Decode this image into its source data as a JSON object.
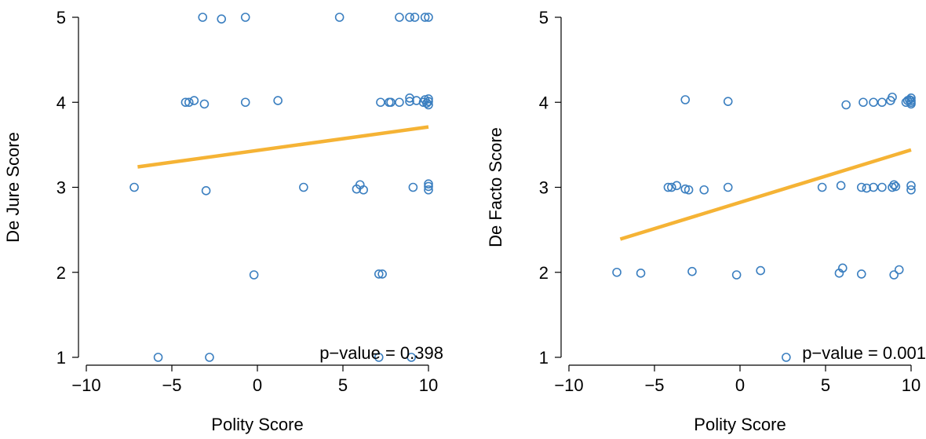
{
  "colors": {
    "point": "#3b7fc0",
    "fit_line": "#f5b335",
    "axis": "#000000"
  },
  "chart_data": [
    {
      "type": "scatter",
      "title": "",
      "xlabel": "Polity Score",
      "ylabel": "De Jure Score",
      "xlim": [
        -10,
        10
      ],
      "ylim": [
        1,
        5
      ],
      "xticks": [
        "−10",
        "−5",
        "0",
        "5",
        "10"
      ],
      "yticks": [
        "1",
        "2",
        "3",
        "4",
        "5"
      ],
      "grid": false,
      "annotation": "p−value = 0.398",
      "fit_line": {
        "x": [
          -7,
          10
        ],
        "y": [
          3.24,
          3.71
        ]
      },
      "points": [
        {
          "x": -3.2,
          "y": 5.0
        },
        {
          "x": -2.1,
          "y": 4.98
        },
        {
          "x": -0.7,
          "y": 5.0
        },
        {
          "x": 4.8,
          "y": 5.0
        },
        {
          "x": 8.3,
          "y": 5.0
        },
        {
          "x": 8.9,
          "y": 5.0
        },
        {
          "x": 9.2,
          "y": 5.0
        },
        {
          "x": 9.8,
          "y": 5.0
        },
        {
          "x": 10.0,
          "y": 5.0
        },
        {
          "x": -4.2,
          "y": 4.0
        },
        {
          "x": -4.0,
          "y": 4.0
        },
        {
          "x": -3.7,
          "y": 4.02
        },
        {
          "x": -3.1,
          "y": 3.98
        },
        {
          "x": -0.7,
          "y": 4.0
        },
        {
          "x": 1.2,
          "y": 4.02
        },
        {
          "x": 7.2,
          "y": 4.0
        },
        {
          "x": 7.7,
          "y": 4.0
        },
        {
          "x": 7.8,
          "y": 4.0
        },
        {
          "x": 8.3,
          "y": 4.0
        },
        {
          "x": 8.9,
          "y": 4.05
        },
        {
          "x": 8.9,
          "y": 4.01
        },
        {
          "x": 9.3,
          "y": 4.02
        },
        {
          "x": 9.7,
          "y": 4.0
        },
        {
          "x": 9.8,
          "y": 4.03
        },
        {
          "x": 9.9,
          "y": 3.99
        },
        {
          "x": 10.0,
          "y": 4.04
        },
        {
          "x": 10.0,
          "y": 4.01
        },
        {
          "x": 10.0,
          "y": 3.97
        },
        {
          "x": -7.2,
          "y": 3.0
        },
        {
          "x": -3.0,
          "y": 2.96
        },
        {
          "x": 2.7,
          "y": 3.0
        },
        {
          "x": 5.8,
          "y": 2.98
        },
        {
          "x": 6.0,
          "y": 3.03
        },
        {
          "x": 6.2,
          "y": 2.97
        },
        {
          "x": 9.1,
          "y": 3.0
        },
        {
          "x": 10.0,
          "y": 3.04
        },
        {
          "x": 10.0,
          "y": 3.01
        },
        {
          "x": 10.0,
          "y": 2.97
        },
        {
          "x": -0.2,
          "y": 1.97
        },
        {
          "x": 7.1,
          "y": 1.98
        },
        {
          "x": 7.3,
          "y": 1.98
        },
        {
          "x": -5.8,
          "y": 1.0
        },
        {
          "x": -2.8,
          "y": 1.0
        },
        {
          "x": 7.1,
          "y": 1.0
        },
        {
          "x": 9.0,
          "y": 1.0
        }
      ]
    },
    {
      "type": "scatter",
      "title": "",
      "xlabel": "Polity Score",
      "ylabel": "De Facto Score",
      "xlim": [
        -10,
        10
      ],
      "ylim": [
        1,
        5
      ],
      "xticks": [
        "−10",
        "−5",
        "0",
        "5",
        "10"
      ],
      "yticks": [
        "1",
        "2",
        "3",
        "4",
        "5"
      ],
      "grid": false,
      "annotation": "p−value = 0.001",
      "fit_line": {
        "x": [
          -7,
          10
        ],
        "y": [
          2.39,
          3.44
        ]
      },
      "points": [
        {
          "x": -3.2,
          "y": 4.03
        },
        {
          "x": -0.7,
          "y": 4.01
        },
        {
          "x": 6.2,
          "y": 3.97
        },
        {
          "x": 7.2,
          "y": 4.0
        },
        {
          "x": 7.8,
          "y": 4.0
        },
        {
          "x": 8.3,
          "y": 4.0
        },
        {
          "x": 8.8,
          "y": 4.02
        },
        {
          "x": 8.9,
          "y": 4.06
        },
        {
          "x": 9.7,
          "y": 4.0
        },
        {
          "x": 9.8,
          "y": 4.02
        },
        {
          "x": 9.9,
          "y": 4.03
        },
        {
          "x": 10.0,
          "y": 4.05
        },
        {
          "x": 10.0,
          "y": 4.0
        },
        {
          "x": 10.0,
          "y": 3.98
        },
        {
          "x": 10.0,
          "y": 4.02
        },
        {
          "x": -4.2,
          "y": 3.0
        },
        {
          "x": -4.0,
          "y": 3.0
        },
        {
          "x": -3.7,
          "y": 3.02
        },
        {
          "x": -3.2,
          "y": 2.98
        },
        {
          "x": -3.0,
          "y": 2.97
        },
        {
          "x": -2.1,
          "y": 2.97
        },
        {
          "x": -0.7,
          "y": 3.0
        },
        {
          "x": 4.8,
          "y": 3.0
        },
        {
          "x": 5.9,
          "y": 3.02
        },
        {
          "x": 7.1,
          "y": 3.0
        },
        {
          "x": 7.4,
          "y": 2.99
        },
        {
          "x": 7.8,
          "y": 3.0
        },
        {
          "x": 8.3,
          "y": 3.0
        },
        {
          "x": 8.9,
          "y": 3.0
        },
        {
          "x": 9.0,
          "y": 3.03
        },
        {
          "x": 9.1,
          "y": 3.01
        },
        {
          "x": 10.0,
          "y": 3.02
        },
        {
          "x": 10.0,
          "y": 2.97
        },
        {
          "x": -7.2,
          "y": 2.0
        },
        {
          "x": -5.8,
          "y": 1.99
        },
        {
          "x": -2.8,
          "y": 2.01
        },
        {
          "x": -0.2,
          "y": 1.97
        },
        {
          "x": 1.2,
          "y": 2.02
        },
        {
          "x": 5.8,
          "y": 1.99
        },
        {
          "x": 6.0,
          "y": 2.05
        },
        {
          "x": 7.1,
          "y": 1.98
        },
        {
          "x": 9.0,
          "y": 1.97
        },
        {
          "x": 9.3,
          "y": 2.03
        },
        {
          "x": 2.7,
          "y": 1.0
        }
      ]
    }
  ]
}
